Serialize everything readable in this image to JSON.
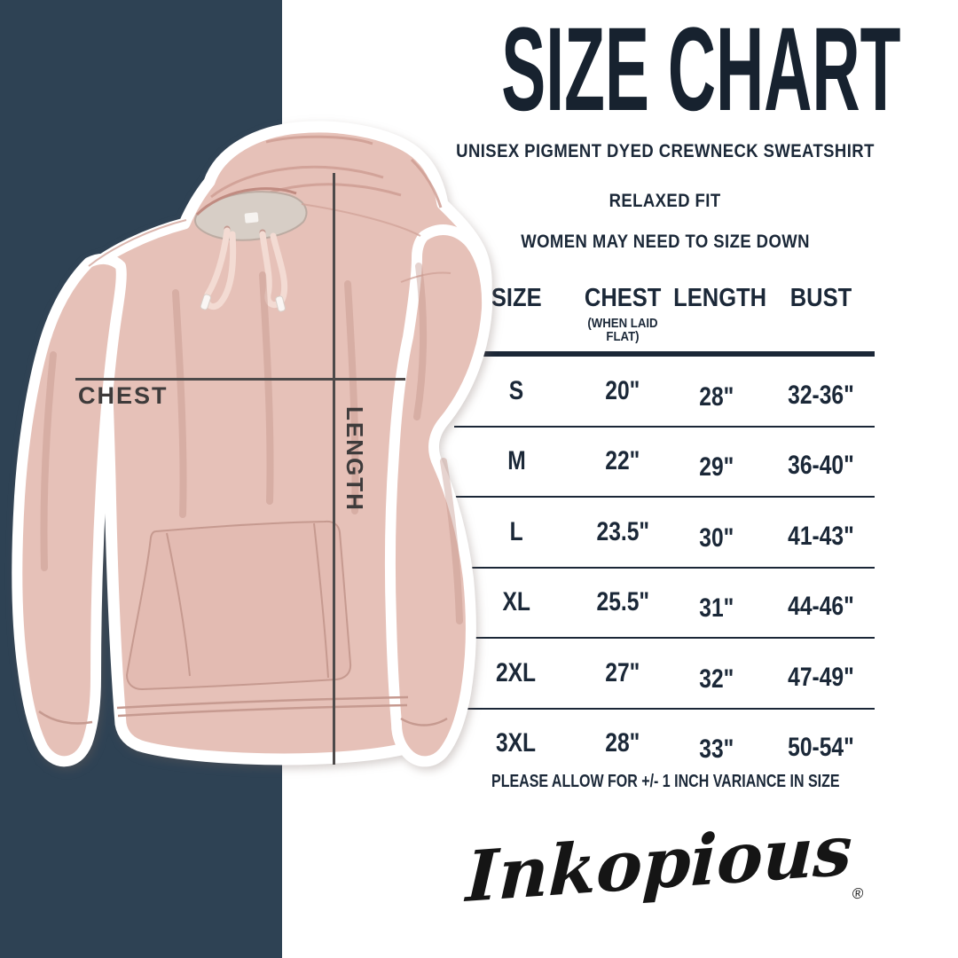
{
  "header": {
    "title": "SIZE CHART",
    "subtitles": [
      "UNISEX PIGMENT DYED CREWNECK SWEATSHIRT",
      "RELAXED FIT",
      "WOMEN MAY NEED TO SIZE DOWN"
    ]
  },
  "diagram": {
    "chest_label": "CHEST",
    "length_label": "LENGTH"
  },
  "chart_data": {
    "type": "table",
    "title": "SIZE CHART",
    "columns": [
      "SIZE",
      "CHEST",
      "LENGTH",
      "BUST"
    ],
    "chest_subnote": "(WHEN LAID FLAT)",
    "rows": [
      {
        "size": "S",
        "chest": "20\"",
        "length": "28\"",
        "bust": "32-36\""
      },
      {
        "size": "M",
        "chest": "22\"",
        "length": "29\"",
        "bust": "36-40\""
      },
      {
        "size": "L",
        "chest": "23.5\"",
        "length": "30\"",
        "bust": "41-43\""
      },
      {
        "size": "XL",
        "chest": "25.5\"",
        "length": "31\"",
        "bust": "44-46\""
      },
      {
        "size": "2XL",
        "chest": "27\"",
        "length": "32\"",
        "bust": "47-49\""
      },
      {
        "size": "3XL",
        "chest": "28\"",
        "length": "33\"",
        "bust": "50-54\""
      }
    ]
  },
  "footer": {
    "variance_note": "PLEASE ALLOW FOR +/- 1 INCH VARIANCE IN SIZE",
    "brand": "Inkopious",
    "registered_mark": "®"
  },
  "colors": {
    "navy_band": "#2e4254",
    "title_navy": "#17222f",
    "table_navy": "#1b2838",
    "hoodie_pink": "#e6c1b8",
    "measure_gray": "#4d4a4a",
    "label_gray": "#3e3b3b"
  }
}
